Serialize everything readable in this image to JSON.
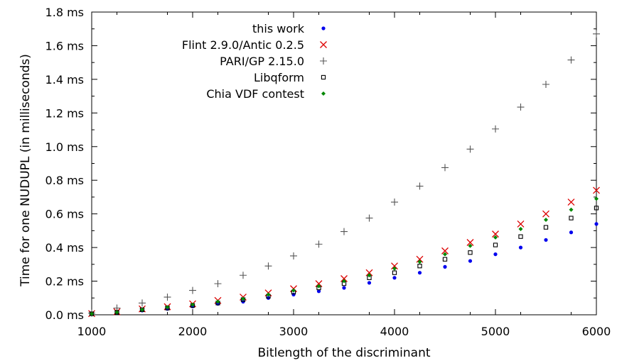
{
  "chart_data": {
    "type": "scatter",
    "xlabel": "Bitlength of the discriminant",
    "ylabel": "Time for one NUDUPL (in milliseconds)",
    "xlim": [
      1000,
      6000
    ],
    "ylim": [
      0,
      1.8
    ],
    "x_ticks": [
      1000,
      2000,
      3000,
      4000,
      5000,
      6000
    ],
    "x_tick_labels": [
      "1000",
      "2000",
      "3000",
      "4000",
      "5000",
      "6000"
    ],
    "y_ticks": [
      0,
      0.2,
      0.4,
      0.6,
      0.8,
      1.0,
      1.2,
      1.4,
      1.6,
      1.8
    ],
    "y_tick_labels": [
      "0.0 ms",
      "0.2 ms",
      "0.4 ms",
      "0.6 ms",
      "0.8 ms",
      "1.0 ms",
      "1.2 ms",
      "1.4 ms",
      "1.6 ms",
      "1.8 ms"
    ],
    "grid": false,
    "legend_position": "top-left",
    "x": [
      1000,
      1250,
      1500,
      1750,
      2000,
      2250,
      2500,
      2750,
      3000,
      3250,
      3500,
      3750,
      4000,
      4250,
      4500,
      4750,
      5000,
      5250,
      5500,
      5750,
      6000
    ],
    "series": [
      {
        "name": "this work",
        "color": "#0000ee",
        "marker": "dot",
        "values": [
          0.006,
          0.012,
          0.025,
          0.035,
          0.05,
          0.065,
          0.078,
          0.1,
          0.12,
          0.14,
          0.16,
          0.19,
          0.22,
          0.25,
          0.285,
          0.32,
          0.36,
          0.4,
          0.445,
          0.49,
          0.54
        ]
      },
      {
        "name": "Flint 2.9.0/Antic 0.2.5",
        "color": "#dd0000",
        "marker": "x",
        "values": [
          0.007,
          0.018,
          0.035,
          0.048,
          0.065,
          0.085,
          0.105,
          0.13,
          0.155,
          0.185,
          0.215,
          0.25,
          0.29,
          0.33,
          0.38,
          0.43,
          0.48,
          0.54,
          0.6,
          0.67,
          0.74
        ]
      },
      {
        "name": "PARI/GP 2.15.0",
        "color": "#555555",
        "marker": "plus",
        "values": [
          0.01,
          0.04,
          0.07,
          0.105,
          0.145,
          0.185,
          0.235,
          0.29,
          0.35,
          0.42,
          0.495,
          0.575,
          0.67,
          0.765,
          0.875,
          0.985,
          1.105,
          1.235,
          1.37,
          1.515,
          1.67
        ]
      },
      {
        "name": "Libqform",
        "color": "#000000",
        "marker": "square",
        "values": [
          0.006,
          0.015,
          0.03,
          0.04,
          0.055,
          0.07,
          0.09,
          0.11,
          0.135,
          0.16,
          0.185,
          0.22,
          0.25,
          0.29,
          0.33,
          0.37,
          0.415,
          0.465,
          0.52,
          0.575,
          0.635
        ]
      },
      {
        "name": "Chia VDF contest",
        "color": "#008800",
        "marker": "diamond",
        "values": [
          0.006,
          0.015,
          0.03,
          0.045,
          0.06,
          0.078,
          0.095,
          0.12,
          0.145,
          0.17,
          0.2,
          0.235,
          0.275,
          0.315,
          0.36,
          0.41,
          0.46,
          0.51,
          0.565,
          0.625,
          0.69
        ]
      }
    ]
  }
}
